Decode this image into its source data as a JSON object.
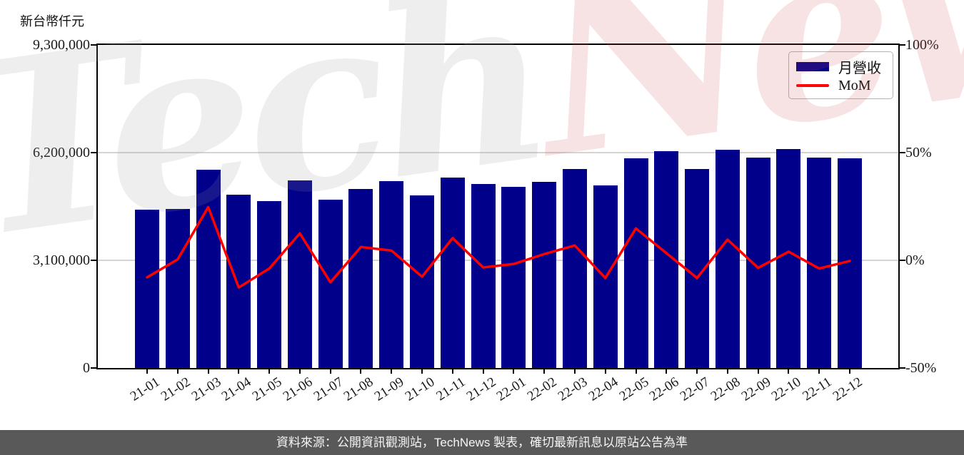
{
  "chart_data": {
    "type": "bar",
    "title": "",
    "categories": [
      "21-01",
      "21-02",
      "21-03",
      "21-04",
      "21-05",
      "21-06",
      "21-07",
      "21-08",
      "21-09",
      "21-10",
      "21-11",
      "21-12",
      "22-01",
      "22-02",
      "22-03",
      "22-04",
      "22-05",
      "22-06",
      "22-07",
      "22-08",
      "22-09",
      "22-10",
      "22-11",
      "22-12"
    ],
    "series": [
      {
        "name": "月營收",
        "type": "bar",
        "axis": "left",
        "color": "#00008B",
        "values": [
          4560000,
          4580000,
          5710000,
          4990000,
          4800000,
          5400000,
          4850000,
          5150000,
          5380000,
          4970000,
          5480000,
          5300000,
          5210000,
          5360000,
          5730000,
          5260000,
          6040000,
          6240000,
          5730000,
          6280000,
          6060000,
          6300000,
          6060000,
          6040000
        ]
      },
      {
        "name": "MoM",
        "type": "line",
        "axis": "right",
        "color": "#FF0000",
        "values": [
          -7.9,
          0.4,
          24.7,
          -12.6,
          -3.8,
          12.5,
          -10.2,
          6.2,
          4.5,
          -7.6,
          10.3,
          -3.3,
          -1.7,
          2.9,
          6.9,
          -8.2,
          14.8,
          3.3,
          -8.2,
          9.6,
          -3.5,
          4.0,
          -3.8,
          -0.3
        ]
      }
    ],
    "left_axis": {
      "title": "新台幣仟元",
      "min": 0,
      "max": 9300000,
      "tick_values": [
        0,
        3100000,
        6200000,
        9300000
      ],
      "tick_labels": [
        "0",
        "3,100,000",
        "6,200,000",
        "9,300,000"
      ]
    },
    "right_axis": {
      "min": -50,
      "max": 100,
      "tick_values": [
        -50,
        0,
        50,
        100
      ],
      "tick_labels": [
        "-50%",
        "0%",
        "50%",
        "100%"
      ]
    },
    "grid": "horizontal",
    "legend_position": "top-right"
  },
  "legend": {
    "bar_label": "月營收",
    "line_label": "MoM"
  },
  "watermark": {
    "part1": "Tech",
    "part2": "News"
  },
  "footer": {
    "text": "資料來源：公開資訊觀測站，TechNews 製表，確切最新訊息以原站公告為準"
  },
  "colors": {
    "bar": "#00008B",
    "line": "#FF0000",
    "gridline": "#d4d4d4",
    "spine": "#000000",
    "footer_bg": "#595959",
    "footer_text": "#f5f5f5"
  }
}
